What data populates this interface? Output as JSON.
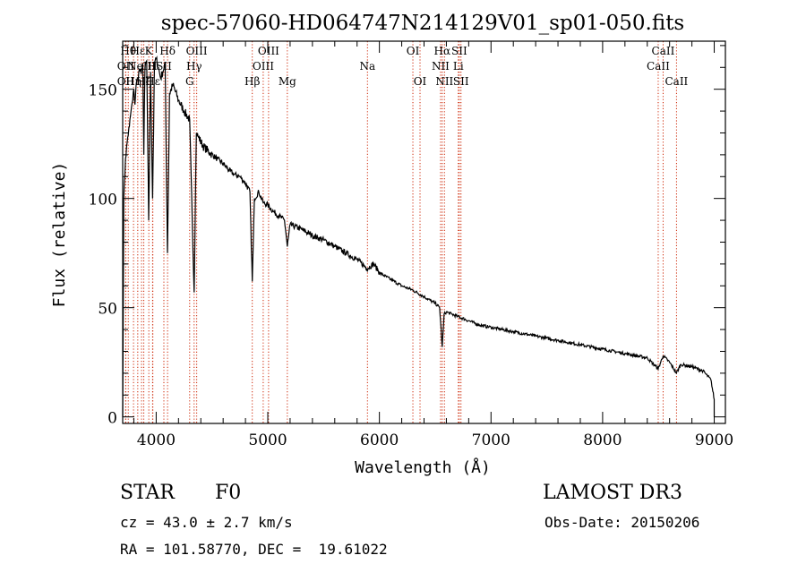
{
  "chart_data": {
    "type": "line",
    "title": "spec-57060-HD064747N214129V01_sp01-050.fits",
    "xlabel": "Wavelength (Å)",
    "ylabel": "Flux (relative)",
    "xlim": [
      3700,
      9100
    ],
    "ylim": [
      -3,
      172
    ],
    "xticks": [
      4000,
      5000,
      6000,
      7000,
      8000,
      9000
    ],
    "xtick_labels": [
      "4000",
      "5000",
      "6000",
      "7000",
      "8000",
      "9000"
    ],
    "yticks": [
      0,
      50,
      100,
      150
    ],
    "ytick_labels": [
      "0",
      "50",
      "100",
      "150"
    ],
    "series": [
      {
        "name": "flux",
        "x": [
          3700,
          3710,
          3725,
          3745,
          3760,
          3775,
          3790,
          3800,
          3810,
          3820,
          3835,
          3850,
          3865,
          3880,
          3889,
          3900,
          3915,
          3933,
          3950,
          3968,
          3985,
          4000,
          4020,
          4040,
          4060,
          4080,
          4101,
          4120,
          4150,
          4200,
          4250,
          4300,
          4340,
          4360,
          4380,
          4420,
          4480,
          4550,
          4600,
          4650,
          4700,
          4750,
          4800,
          4840,
          4861,
          4880,
          4920,
          4960,
          5000,
          5050,
          5100,
          5150,
          5175,
          5200,
          5300,
          5400,
          5500,
          5600,
          5700,
          5800,
          5890,
          5950,
          6000,
          6100,
          6200,
          6300,
          6400,
          6500,
          6540,
          6563,
          6580,
          6600,
          6650,
          6700,
          6800,
          6900,
          7000,
          7200,
          7400,
          7600,
          7800,
          8000,
          8200,
          8400,
          8498,
          8542,
          8600,
          8662,
          8700,
          8800,
          8900,
          8970,
          9000
        ],
        "y": [
          0,
          100,
          118,
          128,
          133,
          140,
          145,
          150,
          143,
          152,
          155,
          159,
          157,
          162,
          120,
          160,
          163,
          90,
          158,
          100,
          162,
          164,
          160,
          155,
          158,
          162,
          75,
          148,
          152,
          145,
          140,
          136,
          57,
          130,
          128,
          124,
          121,
          118,
          116,
          113,
          111,
          110,
          107,
          103,
          62,
          100,
          103,
          98,
          97,
          94,
          92,
          90,
          78,
          88,
          86,
          83,
          81,
          78,
          75,
          72,
          68,
          70,
          66,
          63,
          60,
          58,
          55,
          52,
          50,
          32,
          47,
          48,
          47,
          46,
          44,
          42,
          41,
          39,
          37,
          35,
          33,
          31,
          29,
          27,
          22,
          28,
          25,
          20,
          24,
          23,
          21,
          17,
          8
        ]
      }
    ],
    "line_markers": [
      {
        "x": 3750,
        "label": "Hθ",
        "row": 1
      },
      {
        "x": 3727,
        "label": "OII",
        "row": 2
      },
      {
        "x": 3727,
        "label": "OII",
        "row": 3
      },
      {
        "x": 3797,
        "label": "Hη",
        "row": 3
      },
      {
        "x": 3835,
        "label": "Hε",
        "row": 1
      },
      {
        "x": 3869,
        "label": "NeIII",
        "row": 2
      },
      {
        "x": 3889,
        "label": "Hζ",
        "row": 3
      },
      {
        "x": 3934,
        "label": "K",
        "row": 1
      },
      {
        "x": 3968,
        "label": "H",
        "row": 2
      },
      {
        "x": 3970,
        "label": "Hε",
        "row": 3
      },
      {
        "x": 4069,
        "label": "SII",
        "row": 2
      },
      {
        "x": 4102,
        "label": "Hδ",
        "row": 1
      },
      {
        "x": 4300,
        "label": "G",
        "row": 3
      },
      {
        "x": 4340,
        "label": "Hγ",
        "row": 2
      },
      {
        "x": 4363,
        "label": "OIII",
        "row": 1
      },
      {
        "x": 4861,
        "label": "Hβ",
        "row": 3
      },
      {
        "x": 4959,
        "label": "OIII",
        "row": 2
      },
      {
        "x": 5007,
        "label": "OIII",
        "row": 1
      },
      {
        "x": 5175,
        "label": "Mg",
        "row": 3
      },
      {
        "x": 5893,
        "label": "Na",
        "row": 2
      },
      {
        "x": 6300,
        "label": "OI",
        "row": 1
      },
      {
        "x": 6364,
        "label": "OI",
        "row": 3
      },
      {
        "x": 6548,
        "label": "NII",
        "row": 2
      },
      {
        "x": 6563,
        "label": "Hα",
        "row": 1
      },
      {
        "x": 6583,
        "label": "NII",
        "row": 3
      },
      {
        "x": 6707,
        "label": "Li",
        "row": 2
      },
      {
        "x": 6716,
        "label": "SII",
        "row": 1
      },
      {
        "x": 6731,
        "label": "SII",
        "row": 3
      },
      {
        "x": 8498,
        "label": "CaII",
        "row": 2
      },
      {
        "x": 8542,
        "label": "CaII",
        "row": 1
      },
      {
        "x": 8662,
        "label": "CaII",
        "row": 3
      }
    ]
  },
  "info": {
    "class_label": "STAR",
    "subclass": "F0",
    "survey": "LAMOST DR3",
    "redshift": "cz = 43.0 ± 2.7 km/s",
    "obs_date": "Obs-Date: 20150206",
    "coords": "RA = 101.58770, DEC =  19.61022"
  }
}
